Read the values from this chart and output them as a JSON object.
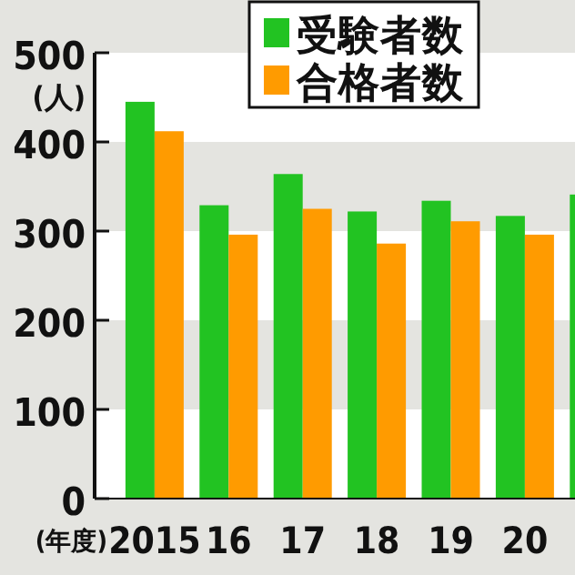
{
  "chart_data": {
    "type": "bar",
    "categories": [
      "2015",
      "16",
      "17",
      "18",
      "19",
      "20",
      null
    ],
    "series": [
      {
        "name": "受験者数",
        "color": "#22c322",
        "values": [
          445,
          329,
          364,
          322,
          334,
          317,
          341
        ]
      },
      {
        "name": "合格者数",
        "color": "#ff9b00",
        "values": [
          412,
          296,
          325,
          286,
          311,
          296,
          null
        ]
      }
    ],
    "ylabel": "(人)",
    "xlabel": "(年度)",
    "ylim": [
      0,
      500
    ],
    "yticks": [
      0,
      100,
      200,
      300,
      400,
      500
    ],
    "bands": [
      {
        "axis": "y",
        "from": 100,
        "to": 200,
        "color": "#e4e4e0"
      },
      {
        "axis": "y",
        "from": 300,
        "to": 400,
        "color": "#e4e4e0"
      }
    ],
    "legend": "top"
  }
}
